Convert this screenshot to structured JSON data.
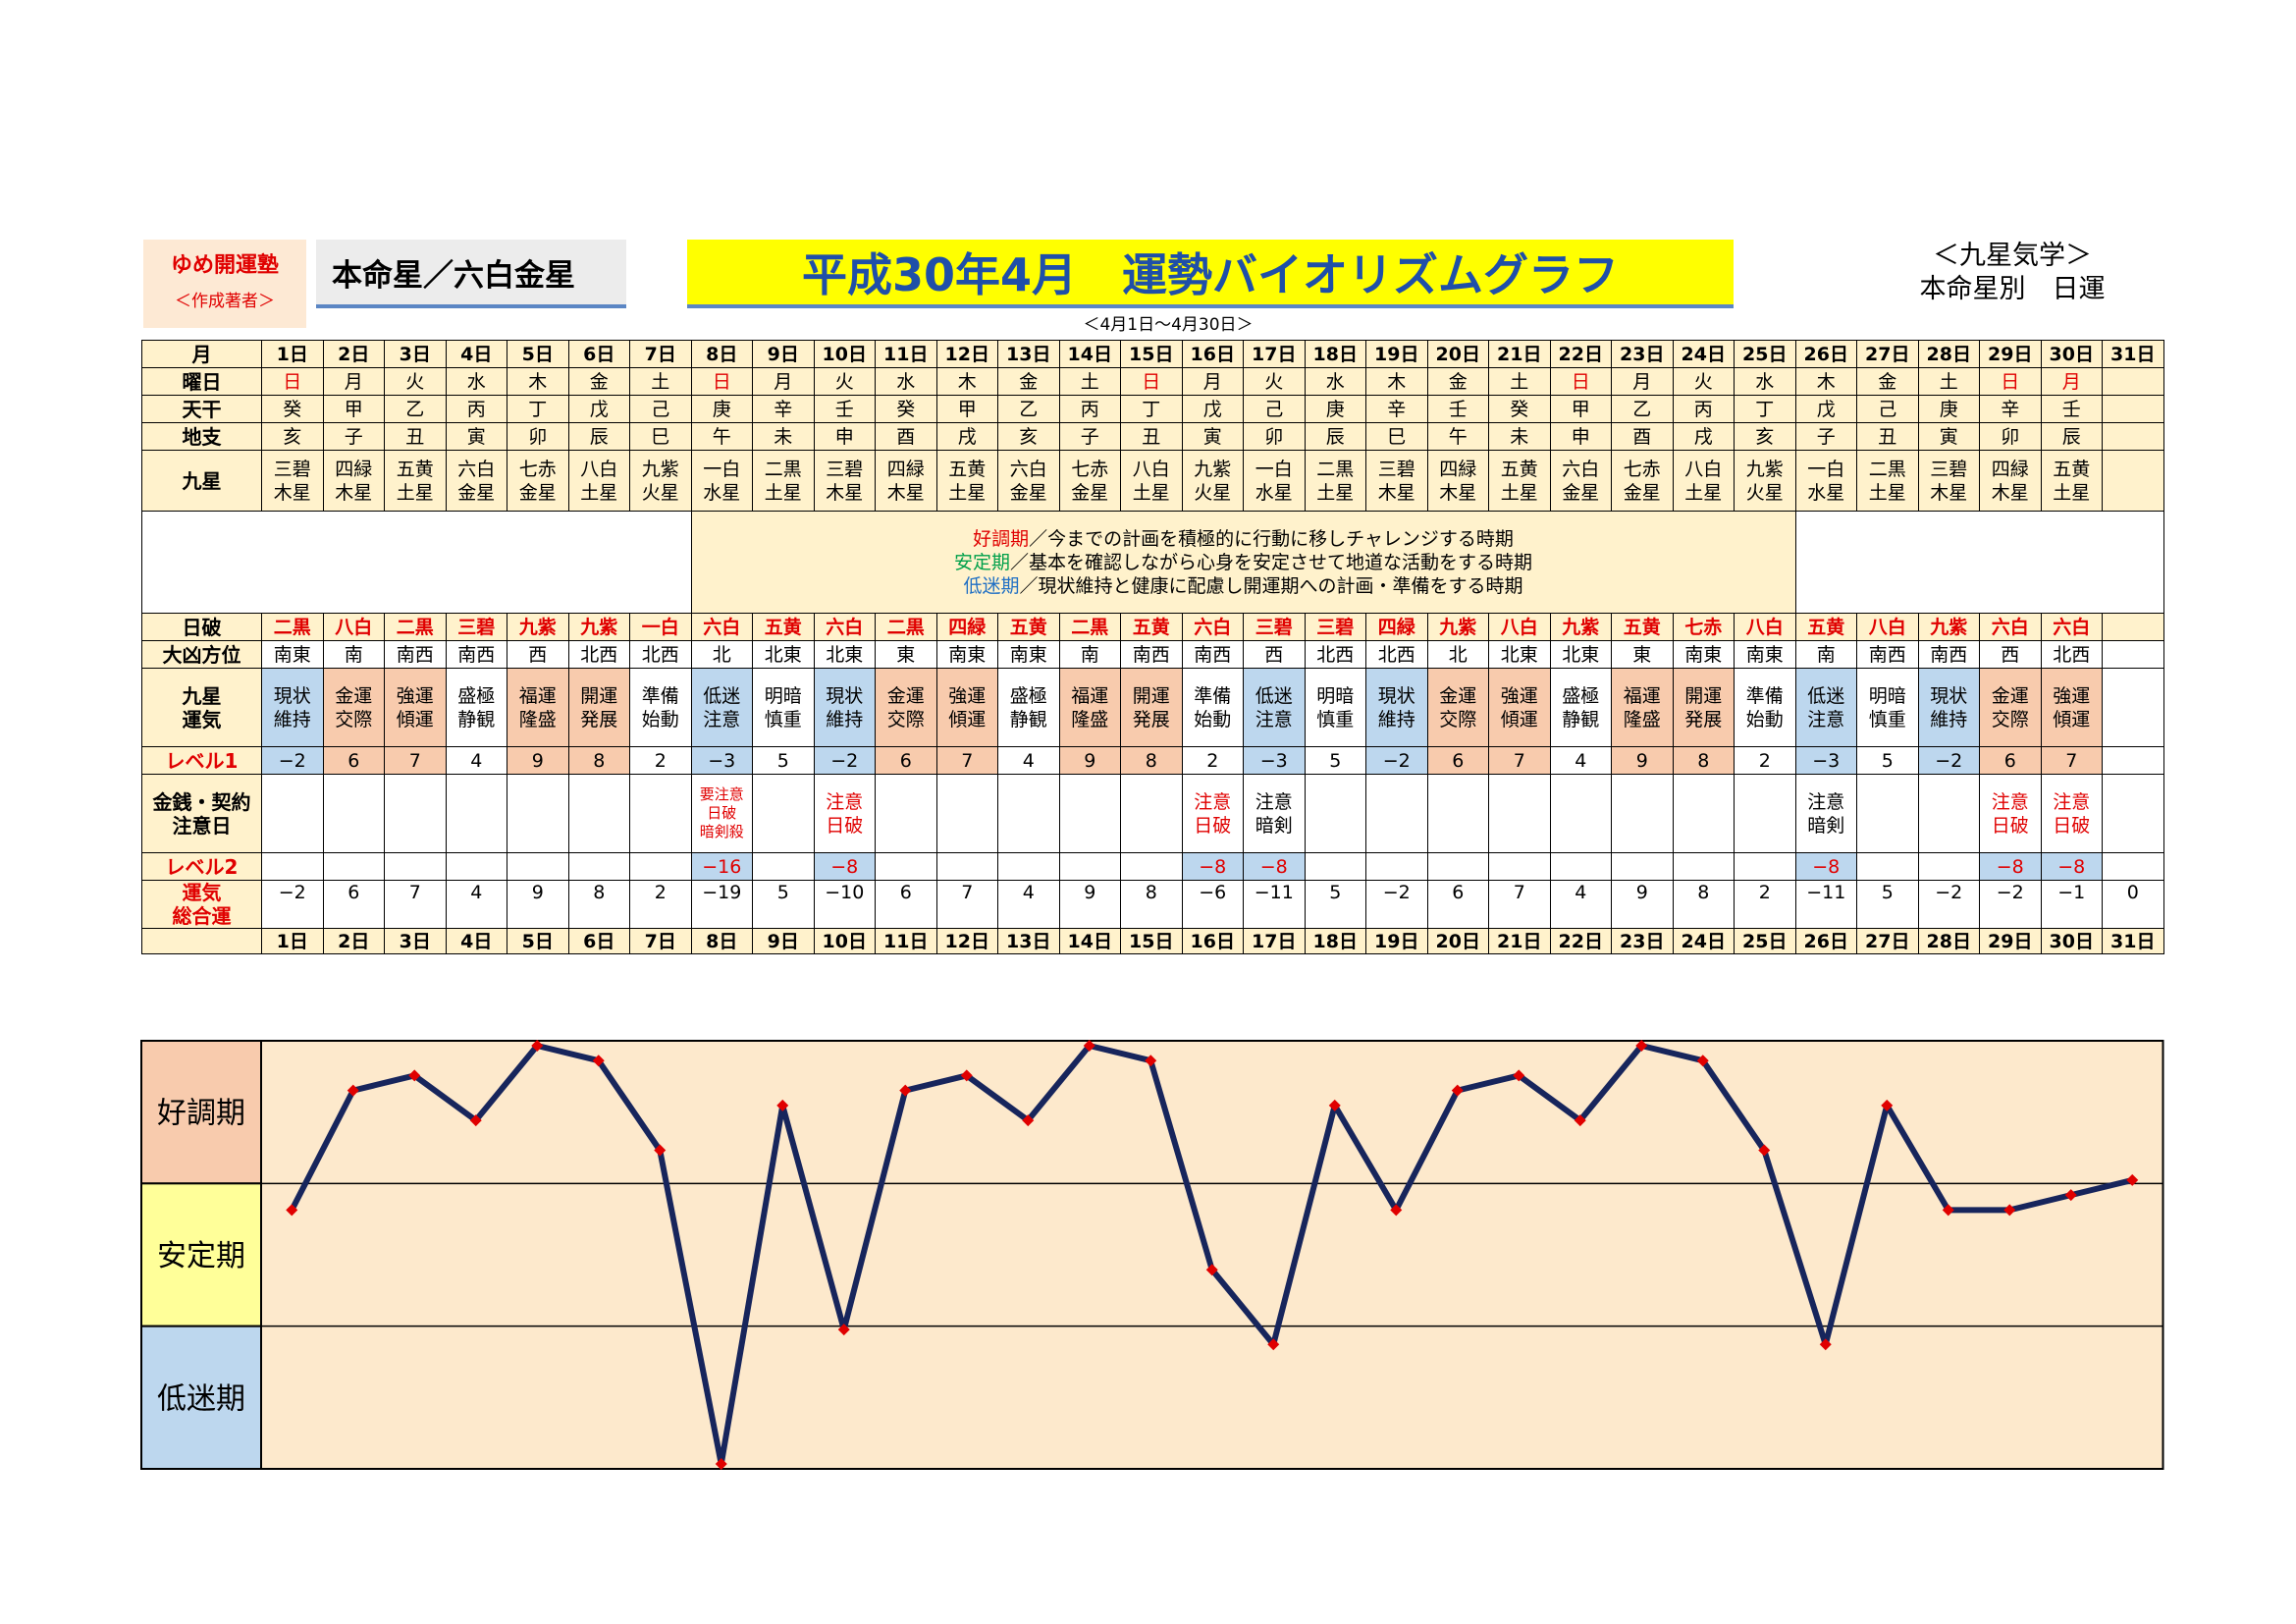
{
  "author": {
    "name": "ゆめ開運塾",
    "role": "＜作成著者＞"
  },
  "honmei": "本命星／六白金星",
  "title": "平成30年4月　運勢バイオリズムグラフ",
  "range": "＜4月1日～4月30日＞",
  "right_title": {
    "line1": "＜九星気学＞",
    "line2": "本命星別　日運"
  },
  "row_labels": {
    "month": "月",
    "weekday": "曜日",
    "tenkan": "天干",
    "chishi": "地支",
    "kyusei": "九星",
    "nippa": "日破",
    "daikyo": "大凶方位",
    "unki": "九星\n運気",
    "level1": "レベル1",
    "caution": "金銭・契約\n注意日",
    "level2": "レベル2",
    "total": "運気\n総合運"
  },
  "legend": [
    {
      "term": "好調期",
      "text": "／今までの計画を積極的に行動に移しチャレンジする時期",
      "color": "#e00000"
    },
    {
      "term": "安定期",
      "text": "／基本を確認しながら心身を安定させて地道な活動をする時期",
      "color": "#00a04a"
    },
    {
      "term": "低迷期",
      "text": "／現状維持と健康に配慮し開運期への計画・準備をする時期",
      "color": "#1f6fc4"
    }
  ],
  "days": [
    "1日",
    "2日",
    "3日",
    "4日",
    "5日",
    "6日",
    "7日",
    "8日",
    "9日",
    "10日",
    "11日",
    "12日",
    "13日",
    "14日",
    "15日",
    "16日",
    "17日",
    "18日",
    "19日",
    "20日",
    "21日",
    "22日",
    "23日",
    "24日",
    "25日",
    "26日",
    "27日",
    "28日",
    "29日",
    "30日",
    "31日"
  ],
  "weekdays": [
    "日",
    "月",
    "火",
    "水",
    "木",
    "金",
    "土",
    "日",
    "月",
    "火",
    "水",
    "木",
    "金",
    "土",
    "日",
    "月",
    "火",
    "水",
    "木",
    "金",
    "土",
    "日",
    "月",
    "火",
    "水",
    "木",
    "金",
    "土",
    "日",
    "月",
    ""
  ],
  "weekday_red": [
    1,
    0,
    0,
    0,
    0,
    0,
    0,
    1,
    0,
    0,
    0,
    0,
    0,
    0,
    1,
    0,
    0,
    0,
    0,
    0,
    0,
    1,
    0,
    0,
    0,
    0,
    0,
    0,
    1,
    1,
    0
  ],
  "tenkan": [
    "癸",
    "甲",
    "乙",
    "丙",
    "丁",
    "戊",
    "己",
    "庚",
    "辛",
    "壬",
    "癸",
    "甲",
    "乙",
    "丙",
    "丁",
    "戊",
    "己",
    "庚",
    "辛",
    "壬",
    "癸",
    "甲",
    "乙",
    "丙",
    "丁",
    "戊",
    "己",
    "庚",
    "辛",
    "壬",
    ""
  ],
  "chishi": [
    "亥",
    "子",
    "丑",
    "寅",
    "卯",
    "辰",
    "巳",
    "午",
    "未",
    "申",
    "酉",
    "戌",
    "亥",
    "子",
    "丑",
    "寅",
    "卯",
    "辰",
    "巳",
    "午",
    "未",
    "申",
    "酉",
    "戌",
    "亥",
    "子",
    "丑",
    "寅",
    "卯",
    "辰",
    ""
  ],
  "kyusei": [
    "三碧\n木星",
    "四緑\n木星",
    "五黄\n土星",
    "六白\n金星",
    "七赤\n金星",
    "八白\n土星",
    "九紫\n火星",
    "一白\n水星",
    "二黒\n土星",
    "三碧\n木星",
    "四緑\n木星",
    "五黄\n土星",
    "六白\n金星",
    "七赤\n金星",
    "八白\n土星",
    "九紫\n火星",
    "一白\n水星",
    "二黒\n土星",
    "三碧\n木星",
    "四緑\n木星",
    "五黄\n土星",
    "六白\n金星",
    "七赤\n金星",
    "八白\n土星",
    "九紫\n火星",
    "一白\n水星",
    "二黒\n土星",
    "三碧\n木星",
    "四緑\n木星",
    "五黄\n土星",
    ""
  ],
  "nippa": [
    "二黒",
    "八白",
    "二黒",
    "三碧",
    "九紫",
    "九紫",
    "一白",
    "六白",
    "五黄",
    "六白",
    "二黒",
    "四緑",
    "五黄",
    "二黒",
    "五黄",
    "六白",
    "三碧",
    "三碧",
    "四緑",
    "九紫",
    "八白",
    "九紫",
    "五黄",
    "七赤",
    "八白",
    "五黄",
    "八白",
    "九紫",
    "六白",
    "六白",
    ""
  ],
  "daikyo": [
    "南東",
    "南",
    "南西",
    "南西",
    "西",
    "北西",
    "北西",
    "北",
    "北東",
    "北東",
    "東",
    "南東",
    "南東",
    "南",
    "南西",
    "南西",
    "西",
    "北西",
    "北西",
    "北",
    "北東",
    "北東",
    "東",
    "南東",
    "南東",
    "南",
    "南西",
    "南西",
    "西",
    "北西",
    ""
  ],
  "unki": [
    "現状\n維持",
    "金運\n交際",
    "強運\n傾運",
    "盛極\n静観",
    "福運\n隆盛",
    "開運\n発展",
    "準備\n始動",
    "低迷\n注意",
    "明暗\n慎重",
    "現状\n維持",
    "金運\n交際",
    "強運\n傾運",
    "盛極\n静観",
    "福運\n隆盛",
    "開運\n発展",
    "準備\n始動",
    "低迷\n注意",
    "明暗\n慎重",
    "現状\n維持",
    "金運\n交際",
    "強運\n傾運",
    "盛極\n静観",
    "福運\n隆盛",
    "開運\n発展",
    "準備\n始動",
    "低迷\n注意",
    "明暗\n慎重",
    "現状\n維持",
    "金運\n交際",
    "強運\n傾運",
    ""
  ],
  "level1": [
    "−2",
    "6",
    "7",
    "4",
    "9",
    "8",
    "2",
    "−3",
    "5",
    "−2",
    "6",
    "7",
    "4",
    "9",
    "8",
    "2",
    "−3",
    "5",
    "−2",
    "6",
    "7",
    "4",
    "9",
    "8",
    "2",
    "−3",
    "5",
    "−2",
    "6",
    "7",
    ""
  ],
  "caution": [
    "",
    "",
    "",
    "",
    "",
    "",
    "",
    "要注意\n日破\n暗剣殺",
    "",
    "注意\n日破",
    "",
    "",
    "",
    "",
    "",
    "注意\n日破",
    "注意\n暗剣",
    "",
    "",
    "",
    "",
    "",
    "",
    "",
    "",
    "注意\n暗剣",
    "",
    "",
    "注意\n日破",
    "注意\n日破",
    ""
  ],
  "caution_red": [
    0,
    0,
    0,
    0,
    0,
    0,
    0,
    1,
    0,
    1,
    0,
    0,
    0,
    0,
    0,
    1,
    0,
    0,
    0,
    0,
    0,
    0,
    0,
    0,
    0,
    0,
    0,
    0,
    1,
    1,
    0
  ],
  "level2": [
    "",
    "",
    "",
    "",
    "",
    "",
    "",
    "−16",
    "",
    "−8",
    "",
    "",
    "",
    "",
    "",
    "−8",
    "−8",
    "",
    "",
    "",
    "",
    "",
    "",
    "",
    "",
    "−8",
    "",
    "",
    "−8",
    "−8",
    ""
  ],
  "total": [
    "−2",
    "6",
    "7",
    "4",
    "9",
    "8",
    "2",
    "−19",
    "5",
    "−10",
    "6",
    "7",
    "4",
    "9",
    "8",
    "−6",
    "−11",
    "5",
    "−2",
    "6",
    "7",
    "4",
    "9",
    "8",
    "2",
    "−11",
    "5",
    "−2",
    "−2",
    "−1",
    "0"
  ],
  "chart_data": {
    "type": "line",
    "x": [
      "1日",
      "2日",
      "3日",
      "4日",
      "5日",
      "6日",
      "7日",
      "8日",
      "9日",
      "10日",
      "11日",
      "12日",
      "13日",
      "14日",
      "15日",
      "16日",
      "17日",
      "18日",
      "19日",
      "20日",
      "21日",
      "22日",
      "23日",
      "24日",
      "25日",
      "26日",
      "27日",
      "28日",
      "29日",
      "30日",
      "31日"
    ],
    "series": [
      {
        "values": [
          -2,
          6,
          7,
          4,
          9,
          8,
          2,
          -19,
          5,
          -10,
          6,
          7,
          4,
          9,
          8,
          -6,
          -11,
          5,
          -2,
          6,
          7,
          4,
          9,
          8,
          2,
          -11,
          5,
          -2,
          -2,
          -1,
          0
        ]
      }
    ],
    "bands": [
      "好調期",
      "安定期",
      "低迷期"
    ],
    "ylim": [
      -19,
      9
    ],
    "line_color": "#17255c",
    "marker_color": "#e00000",
    "background": "#fde9cc"
  }
}
